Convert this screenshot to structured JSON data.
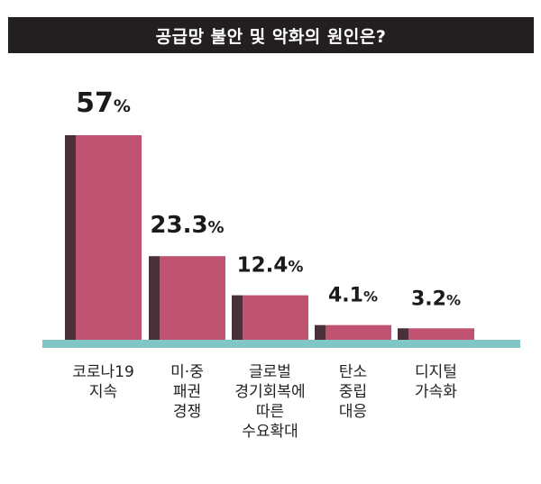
{
  "title": "공급망 불안 및 악화의 원인은?",
  "colors": {
    "bar_face": "#c05372",
    "bar_side": "#4a3038",
    "baseline": "#7fc6c4",
    "title_bg": "#231f20"
  },
  "chart_data": {
    "type": "bar",
    "title": "공급망 불안 및 악화의 원인은?",
    "categories": [
      [
        "코로나19",
        "지속"
      ],
      [
        "미·중",
        "패권",
        "경쟁"
      ],
      [
        "글로벌",
        "경기회복에",
        "따른",
        "수요확대"
      ],
      [
        "탄소",
        "중립",
        "대응"
      ],
      [
        "디지털",
        "가속화"
      ]
    ],
    "values": [
      57,
      23.3,
      12.4,
      4.1,
      3.2
    ],
    "value_labels": [
      {
        "num": "57",
        "unit": "%"
      },
      {
        "num": "23.3",
        "unit": "%"
      },
      {
        "num": "12.4",
        "unit": "%"
      },
      {
        "num": "4.1",
        "unit": "%"
      },
      {
        "num": "3.2",
        "unit": "%"
      }
    ],
    "xlabel": "",
    "ylabel": "",
    "ylim": [
      0,
      57
    ],
    "grid": false,
    "legend": "none"
  }
}
